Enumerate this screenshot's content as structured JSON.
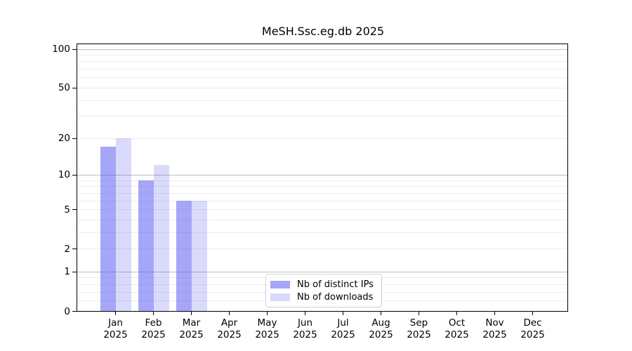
{
  "figure": {
    "title": "MeSH.Ssc.eg.db 2025"
  },
  "chart_data": {
    "type": "bar",
    "title": "MeSH.Ssc.eg.db 2025",
    "categories": [
      "Jan",
      "Feb",
      "Mar",
      "Apr",
      "May",
      "Jun",
      "Jul",
      "Aug",
      "Sep",
      "Oct",
      "Nov",
      "Dec"
    ],
    "category_year": "2025",
    "series": [
      {
        "name": "Nb of distinct IPs",
        "color": "#a9a9f7",
        "fill": "rgba(85,85,242,0.52)",
        "values": [
          17,
          9,
          6,
          0,
          0,
          0,
          0,
          0,
          0,
          0,
          0,
          0
        ]
      },
      {
        "name": "Nb of downloads",
        "color": "#d9d9f9",
        "fill": "rgba(85,85,242,0.22)",
        "values": [
          20,
          12,
          6,
          0,
          0,
          0,
          0,
          0,
          0,
          0,
          0,
          0
        ]
      }
    ],
    "xlabel": "",
    "ylabel": "",
    "y_scale": "log1p",
    "ylim": [
      0,
      111
    ],
    "y_ticks": [
      0,
      1,
      2,
      5,
      10,
      20,
      50,
      100
    ],
    "y_decade_gridlines": [
      1,
      10,
      100
    ],
    "y_minor_gridlines": [
      0.2,
      0.4,
      0.6,
      0.8,
      2,
      3,
      4,
      5,
      6,
      7,
      8,
      9,
      20,
      30,
      40,
      50,
      60,
      70,
      80,
      90
    ],
    "grid": "both",
    "legend_position": "lower-center"
  },
  "colors": {
    "bar_distinct_ips": "#a9a9f7",
    "bar_downloads": "#d9d9f9",
    "grid_major": "#bdbdbd",
    "grid_minor": "#ececec",
    "axis": "#000000",
    "background": "#ffffff"
  }
}
